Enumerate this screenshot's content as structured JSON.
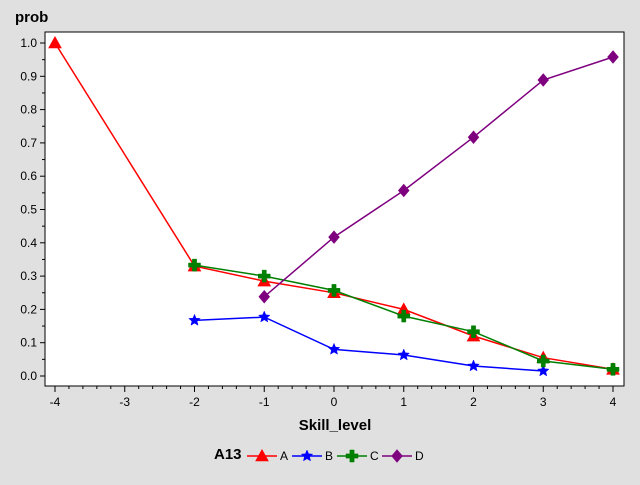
{
  "chart_data": {
    "type": "line",
    "xlabel": "Skill_level",
    "ylabel": "prob",
    "xlim": [
      -4,
      4
    ],
    "ylim": [
      0,
      1
    ],
    "x_ticks": [
      -4,
      -3,
      -2,
      -1,
      0,
      1,
      2,
      3,
      4
    ],
    "y_ticks": [
      "0.0",
      "0.1",
      "0.2",
      "0.3",
      "0.4",
      "0.5",
      "0.6",
      "0.7",
      "0.8",
      "0.9",
      "1.0"
    ],
    "grid": false,
    "legend": {
      "title": "A13",
      "position": "bottom"
    },
    "series": [
      {
        "name": "A",
        "color": "#ff0000",
        "marker": "triangle",
        "x": [
          -4,
          -2,
          -1,
          0,
          1,
          2,
          3,
          4
        ],
        "y": [
          1.0,
          0.33,
          0.285,
          0.25,
          0.2,
          0.12,
          0.055,
          0.02
        ]
      },
      {
        "name": "B",
        "color": "#0000ff",
        "marker": "star",
        "x": [
          -2,
          -1,
          0,
          1,
          2,
          3
        ],
        "y": [
          0.167,
          0.177,
          0.08,
          0.063,
          0.03,
          0.015
        ]
      },
      {
        "name": "C",
        "color": "#007f00",
        "marker": "plus",
        "x": [
          -2,
          -1,
          0,
          1,
          2,
          3,
          4
        ],
        "y": [
          0.333,
          0.3,
          0.257,
          0.18,
          0.133,
          0.045,
          0.02
        ]
      },
      {
        "name": "D",
        "color": "#7f007f",
        "marker": "diamond",
        "x": [
          -1,
          0,
          1,
          2,
          3,
          4
        ],
        "y": [
          0.238,
          0.417,
          0.557,
          0.717,
          0.889,
          0.958
        ]
      }
    ]
  }
}
